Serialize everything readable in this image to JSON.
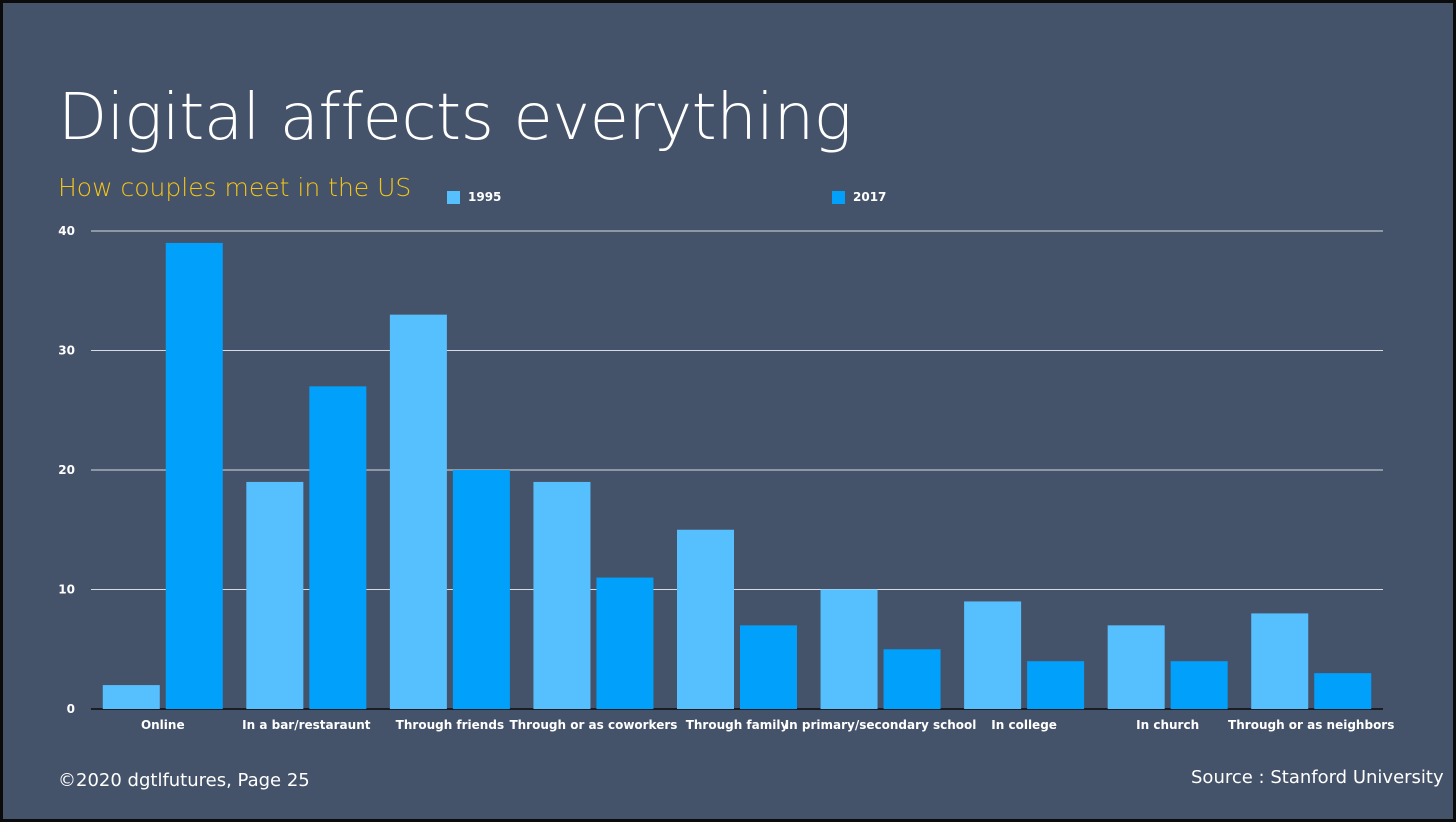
{
  "slide": {
    "title": "Digital affects everything",
    "footer_left": "©2020 dgtlfutures, Page 25",
    "footer_right": "Source : Stanford University"
  },
  "colors": {
    "background": "#45536a",
    "series_1995": "#56c0fe",
    "series_2017": "#00a0fb",
    "subtitle": "#f5c518"
  },
  "chart_data": {
    "type": "bar",
    "title": "How couples meet in the US",
    "xlabel": "",
    "ylabel": "",
    "ylim": [
      0,
      40
    ],
    "yticks": [
      0,
      10,
      20,
      30,
      40
    ],
    "grid": true,
    "legend_position": "top",
    "categories": [
      "Online",
      "In a bar/restaraunt",
      "Through friends",
      "Through or as coworkers",
      "Through family",
      "In primary/secondary school",
      "In college",
      "In church",
      "Through or as neighbors"
    ],
    "series": [
      {
        "name": "1995",
        "values": [
          2,
          19,
          33,
          19,
          15,
          10,
          9,
          7,
          8
        ]
      },
      {
        "name": "2017",
        "values": [
          39,
          27,
          20,
          11,
          7,
          5,
          4,
          4,
          3
        ]
      }
    ]
  }
}
